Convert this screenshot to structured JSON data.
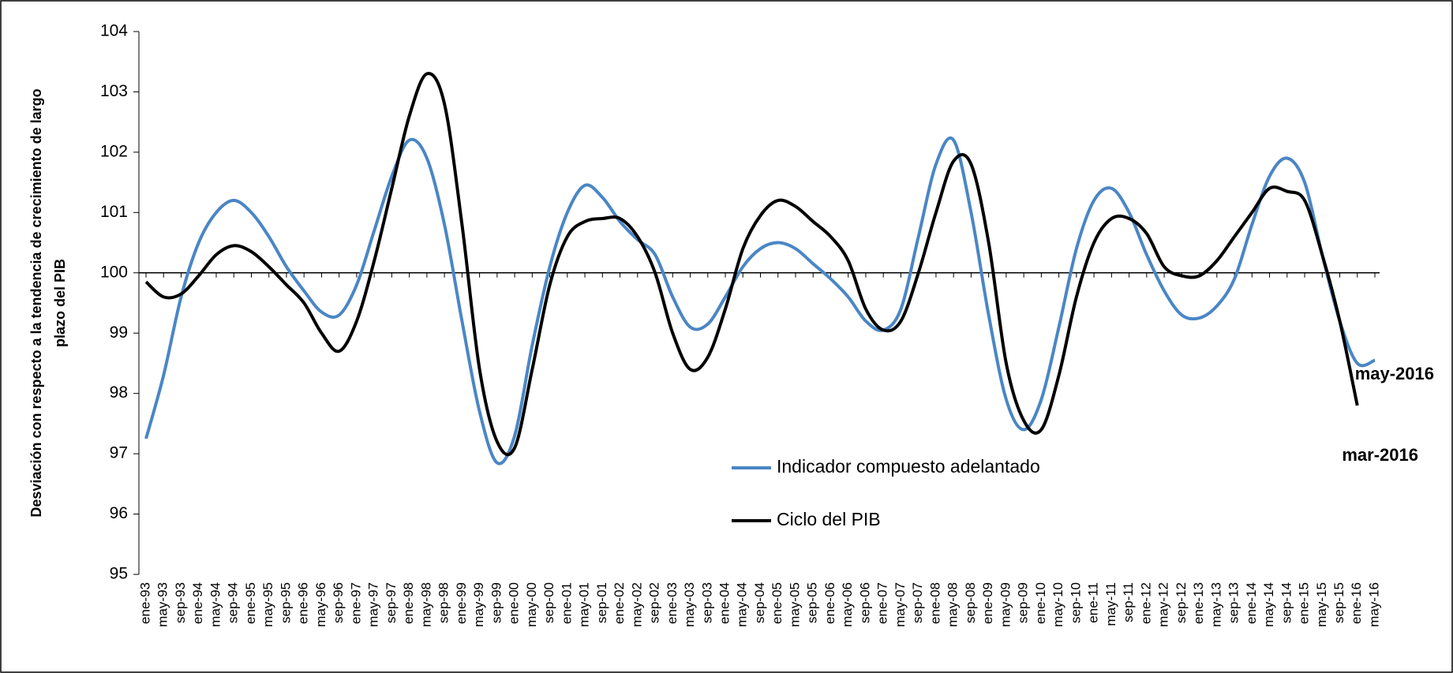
{
  "chart_data": {
    "type": "line",
    "y_label": [
      "Desviación con respecto a la tendencia de crecimiento de largo",
      "plazo del PIB"
    ],
    "categories": [
      "ene-93",
      "may-93",
      "sep-93",
      "ene-94",
      "may-94",
      "sep-94",
      "ene-95",
      "may-95",
      "sep-95",
      "ene-96",
      "may-96",
      "sep-96",
      "ene-97",
      "may-97",
      "sep-97",
      "ene-98",
      "may-98",
      "sep-98",
      "ene-99",
      "may-99",
      "sep-99",
      "ene-00",
      "may-00",
      "sep-00",
      "ene-01",
      "may-01",
      "sep-01",
      "ene-02",
      "may-02",
      "sep-02",
      "ene-03",
      "may-03",
      "sep-03",
      "ene-04",
      "may-04",
      "sep-04",
      "ene-05",
      "may-05",
      "sep-05",
      "ene-06",
      "may-06",
      "sep-06",
      "ene-07",
      "may-07",
      "sep-07",
      "ene-08",
      "may-08",
      "sep-08",
      "ene-09",
      "may-09",
      "sep-09",
      "ene-10",
      "may-10",
      "sep-10",
      "ene-11",
      "may-11",
      "sep-11",
      "ene-12",
      "may-12",
      "sep-12",
      "ene-13",
      "may-13",
      "sep-13",
      "ene-14",
      "may-14",
      "sep-14",
      "ene-15",
      "may-15",
      "sep-15",
      "ene-16",
      "may-16"
    ],
    "series": [
      {
        "name": "Indicador compuesto adelantado",
        "color": "#4a86c5",
        "values": [
          97.25,
          98.3,
          99.6,
          100.5,
          101.0,
          101.2,
          101.0,
          100.6,
          100.1,
          99.7,
          99.35,
          99.3,
          99.8,
          100.7,
          101.6,
          102.2,
          101.9,
          100.8,
          99.2,
          97.7,
          96.85,
          97.3,
          98.8,
          100.1,
          101.0,
          101.45,
          101.25,
          100.85,
          100.55,
          100.3,
          99.6,
          99.1,
          99.15,
          99.6,
          100.1,
          100.4,
          100.5,
          100.4,
          100.15,
          99.9,
          99.6,
          99.2,
          99.05,
          99.4,
          100.6,
          101.8,
          102.2,
          101.0,
          99.3,
          97.9,
          97.4,
          97.9,
          99.1,
          100.4,
          101.2,
          101.4,
          101.0,
          100.3,
          99.7,
          99.3,
          99.25,
          99.45,
          99.9,
          100.8,
          101.6,
          101.9,
          101.5,
          100.3,
          99.2,
          98.5,
          98.55
        ],
        "end_label": "may-2016"
      },
      {
        "name": "Ciclo del PIB",
        "color": "#000000",
        "values": [
          99.85,
          99.6,
          99.65,
          99.95,
          100.3,
          100.45,
          100.35,
          100.1,
          99.8,
          99.5,
          99.0,
          98.7,
          99.2,
          100.2,
          101.4,
          102.6,
          103.3,
          102.8,
          100.8,
          98.4,
          97.2,
          97.1,
          98.4,
          99.8,
          100.6,
          100.85,
          100.9,
          100.9,
          100.6,
          100.0,
          99.0,
          98.4,
          98.6,
          99.4,
          100.4,
          100.95,
          101.2,
          101.1,
          100.85,
          100.6,
          100.2,
          99.4,
          99.05,
          99.2,
          100.0,
          101.0,
          101.85,
          101.8,
          100.5,
          98.5,
          97.55,
          97.4,
          98.3,
          99.6,
          100.5,
          100.9,
          100.9,
          100.65,
          100.1,
          99.95,
          99.95,
          100.2,
          100.6,
          101.0,
          101.4,
          101.35,
          101.2,
          100.3,
          99.2,
          97.8,
          null
        ],
        "end_label": "mar-2016"
      }
    ],
    "ylim": [
      95,
      104
    ],
    "yticks": [
      95,
      96,
      97,
      98,
      99,
      100,
      101,
      102,
      103,
      104
    ],
    "x_axis_at": 100
  }
}
